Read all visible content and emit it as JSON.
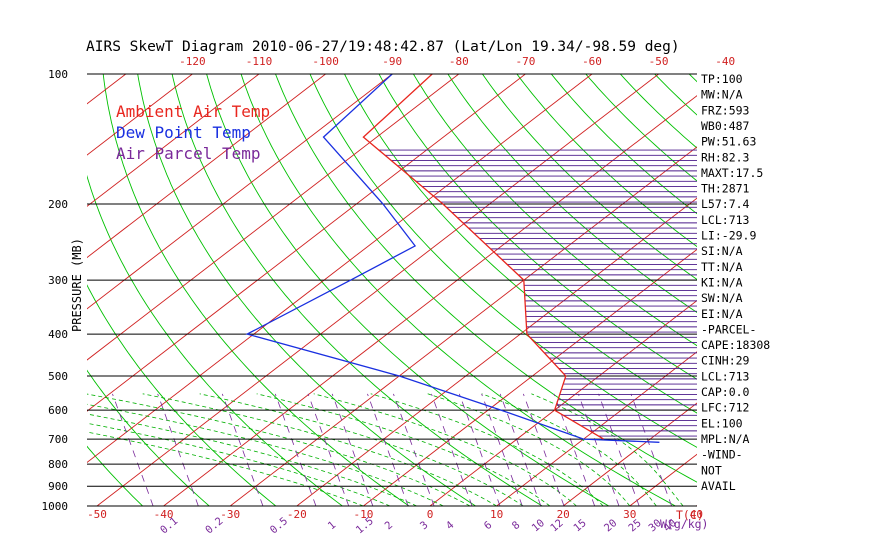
{
  "chart_data": {
    "type": "line",
    "title": "AIRS SkewT Diagram 2010-06-27/19:48:42.87 (Lat/Lon 19.34/-98.59 deg)",
    "ylabel": "PRESSURE (MB)",
    "x_unit_label": "T(C)",
    "mixing_ratio_unit_label": "W(g/kg)",
    "y_scale": "log",
    "ylim": [
      1000,
      100
    ],
    "pressure_ticks": [
      "100",
      "200",
      "300",
      "400",
      "500",
      "600",
      "700",
      "800",
      "900",
      "1000"
    ],
    "temp_ticks_bottom": [
      "-50",
      "-40",
      "-30",
      "-20",
      "-10",
      "0",
      "10",
      "20",
      "30",
      "40"
    ],
    "temp_ticks_top": [
      "-120",
      "-110",
      "-100",
      "-90",
      "-80",
      "-70",
      "-60",
      "-50",
      "-40"
    ],
    "mixing_ratio_labels": [
      "0.1",
      "0.2",
      "0.5",
      "1",
      "1.5",
      "2",
      "3",
      "4",
      "6",
      "8",
      "10",
      "12",
      "15",
      "20",
      "25",
      "30",
      "40"
    ],
    "legend": [
      {
        "label": "Ambient Air Temp",
        "color": "#e8261e"
      },
      {
        "label": "Dew Point Temp",
        "color": "#1a30e0"
      },
      {
        "label": "Air Parcel Temp",
        "color": "#7a2a9a"
      }
    ],
    "series": [
      {
        "name": "Ambient Air Temp",
        "color": "#e8261e",
        "points": [
          [
            100,
            -84
          ],
          [
            140,
            -82
          ],
          [
            200,
            -57
          ],
          [
            300,
            -30
          ],
          [
            400,
            -19
          ],
          [
            500,
            -5
          ],
          [
            600,
            0
          ],
          [
            700,
            13
          ]
        ]
      },
      {
        "name": "Dew Point Temp",
        "color": "#1a30e0",
        "points": [
          [
            100,
            -90
          ],
          [
            140,
            -88
          ],
          [
            200,
            -66
          ],
          [
            250,
            -53
          ],
          [
            300,
            -56
          ],
          [
            400,
            -61
          ],
          [
            500,
            -30
          ],
          [
            600,
            -8
          ],
          [
            700,
            10
          ],
          [
            712,
            22
          ]
        ]
      }
    ],
    "stats": [
      "TP:100",
      "MW:N/A",
      "FRZ:593",
      "WB0:487",
      "PW:51.63",
      "RH:82.3",
      "MAXT:17.5",
      "TH:2871",
      "L57:7.4",
      "LCL:713",
      "LI:-29.9",
      "SI:N/A",
      "TT:N/A",
      "KI:N/A",
      "SW:N/A",
      "EI:N/A",
      "-PARCEL-",
      "CAPE:18308",
      "CINH:29",
      "LCL:713",
      "CAP:0.0",
      "LFC:712",
      "EL:100",
      "MPL:N/A",
      "-WIND-",
      "NOT",
      "AVAIL"
    ],
    "colors": {
      "dry_adiabats": "#00c000",
      "isotherms": "#d02020",
      "mixing_ratio": "#7a2a9a",
      "moist_adiabats": "#00b000",
      "isobars": "#000000",
      "cape_hatch": "#4a1a8a"
    }
  }
}
